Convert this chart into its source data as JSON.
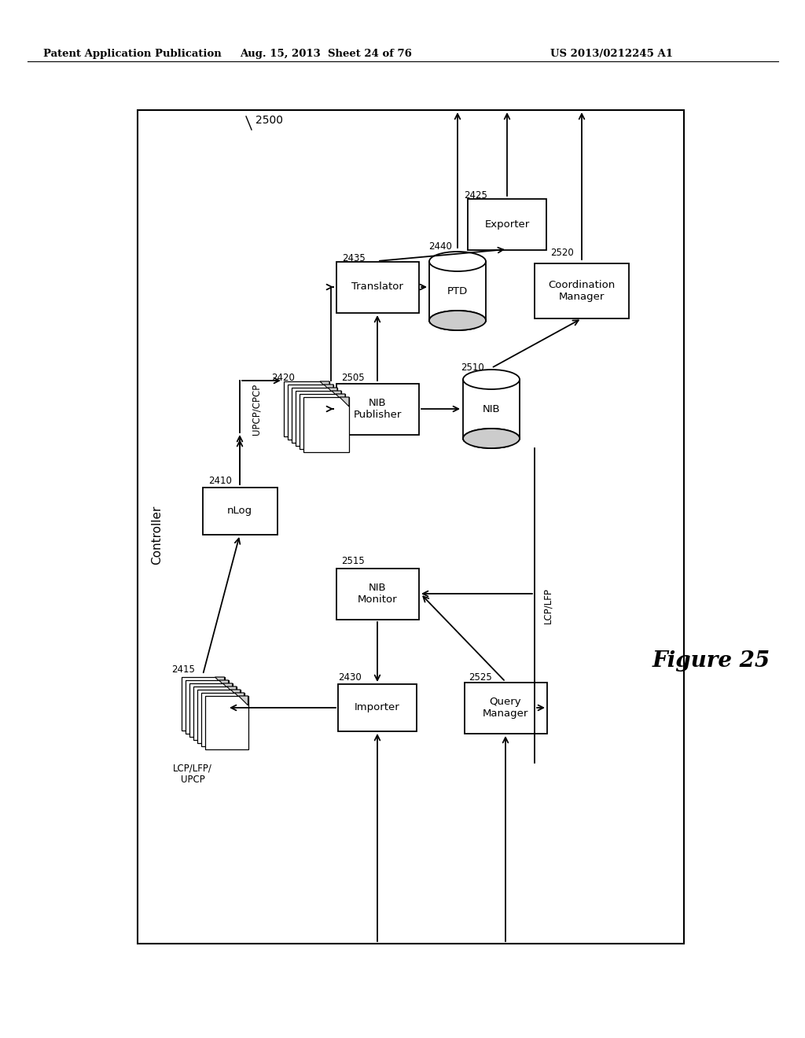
{
  "header_left": "Patent Application Publication",
  "header_mid": "Aug. 15, 2013  Sheet 24 of 76",
  "header_right": "US 2013/0212245 A1",
  "figure_label": "Figure 25",
  "bg_color": "#ffffff"
}
